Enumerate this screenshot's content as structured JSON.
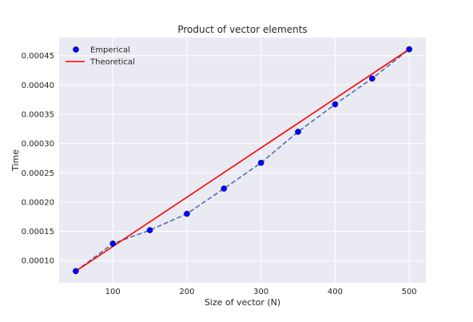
{
  "chart_data": {
    "type": "line",
    "title": "Product of vector elements",
    "xlabel": "Size of vector (N)",
    "ylabel": "Time",
    "xlim": [
      27.5,
      522.5
    ],
    "ylim": [
      6.2e-05,
      0.000481
    ],
    "xticks": [
      100,
      200,
      300,
      400,
      500
    ],
    "xtick_labels": [
      "100",
      "200",
      "300",
      "400",
      "500"
    ],
    "yticks": [
      0.0001,
      0.00015,
      0.0002,
      0.00025,
      0.0003,
      0.00035,
      0.0004,
      0.00045
    ],
    "ytick_labels": [
      "0.00010",
      "0.00015",
      "0.00020",
      "0.00025",
      "0.00030",
      "0.00035",
      "0.00040",
      "0.00045"
    ],
    "grid": true,
    "legend_position": "top-left",
    "x": [
      50,
      100,
      150,
      200,
      250,
      300,
      350,
      400,
      450,
      500
    ],
    "series": [
      {
        "name": "Emperical",
        "style": "markers",
        "color": "#0000ff",
        "values": [
          8.2e-05,
          0.000129,
          0.000152,
          0.00018,
          0.000223,
          0.000267,
          0.00032,
          0.000367,
          0.000411,
          0.000461
        ]
      },
      {
        "name": "",
        "style": "dashed",
        "color": "#4c72b0",
        "values": [
          8.2e-05,
          0.000129,
          0.000152,
          0.00018,
          0.000223,
          0.000267,
          0.00032,
          0.000367,
          0.000411,
          0.000461
        ]
      },
      {
        "name": "Theoretical",
        "style": "line",
        "color": "#ff0000",
        "x": [
          50,
          500
        ],
        "values": [
          8.2e-05,
          0.000461
        ]
      }
    ],
    "colors": {
      "background": "#eaeaf2",
      "grid": "#ffffff",
      "text": "#262626"
    }
  }
}
